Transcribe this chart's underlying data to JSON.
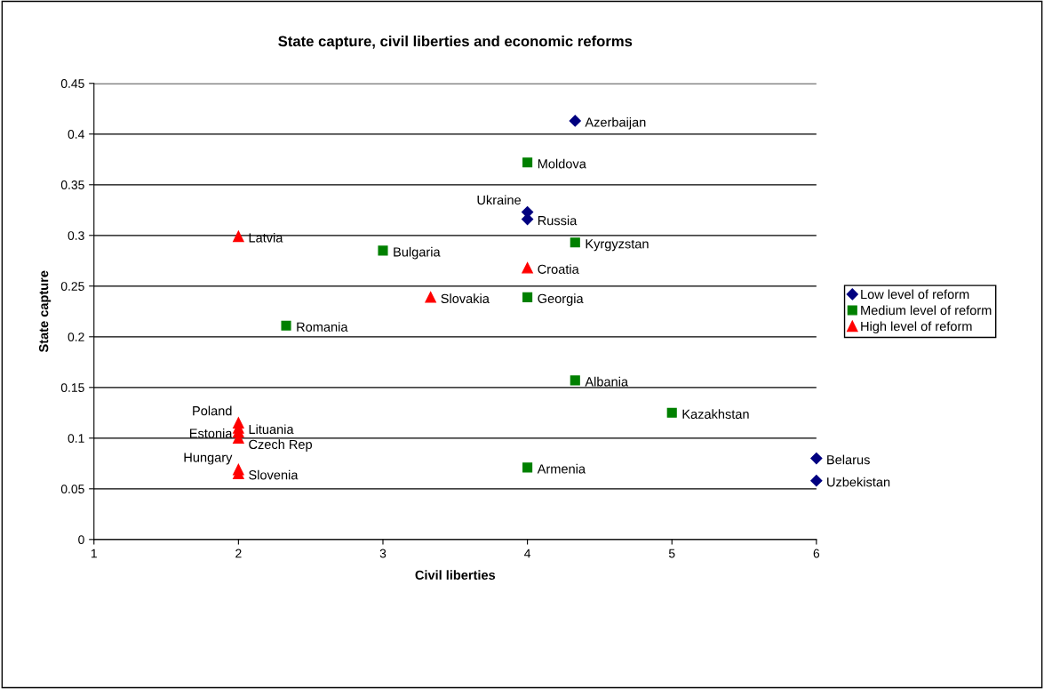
{
  "chart_data": {
    "type": "scatter",
    "title": "State capture, civil liberties and economic reforms",
    "xlabel": "Civil liberties",
    "ylabel": "State capture",
    "xlim": [
      1,
      6
    ],
    "xticks": [
      1,
      2,
      3,
      4,
      5,
      6
    ],
    "ylim": [
      0,
      0.45
    ],
    "yticks": [
      0,
      0.05,
      0.1,
      0.15,
      0.2,
      0.25,
      0.3,
      0.35,
      0.4,
      0.45
    ],
    "grid": "y",
    "legend": "right",
    "series": [
      {
        "name": "Low level of reform",
        "color": "#000080",
        "marker": "diamond",
        "x": [
          4.33,
          4,
          4,
          6,
          6
        ],
        "values": [
          0.413,
          0.323,
          0.316,
          0.08,
          0.058
        ],
        "value_labels": [
          "Azerbaijan",
          "Ukraine",
          "Russia",
          "Belarus",
          "Uzbekistan"
        ]
      },
      {
        "name": "Medium level of reform",
        "color": "#008000",
        "marker": "square",
        "x": [
          4,
          4.33,
          3,
          4,
          2.33,
          4.33,
          5,
          4
        ],
        "values": [
          0.372,
          0.293,
          0.285,
          0.239,
          0.211,
          0.157,
          0.125,
          0.071
        ],
        "value_labels": [
          "Moldova",
          "Kyrgyzstan",
          "Bulgaria",
          "Georgia",
          "Romania",
          "Albania",
          "Kazakhstan",
          "Armenia"
        ]
      },
      {
        "name": "High level of reform",
        "color": "#ff0000",
        "marker": "triangle",
        "x": [
          2,
          4,
          3.33,
          2,
          2,
          2,
          2,
          2,
          2
        ],
        "values": [
          0.299,
          0.268,
          0.239,
          0.115,
          0.11,
          0.106,
          0.1,
          0.069,
          0.065
        ],
        "value_labels": [
          "Latvia",
          "Croatia",
          "Slovakia",
          "Poland",
          "Lituania",
          "Estonia",
          "Czech Rep",
          "Hungary",
          "Slovenia"
        ]
      }
    ]
  }
}
